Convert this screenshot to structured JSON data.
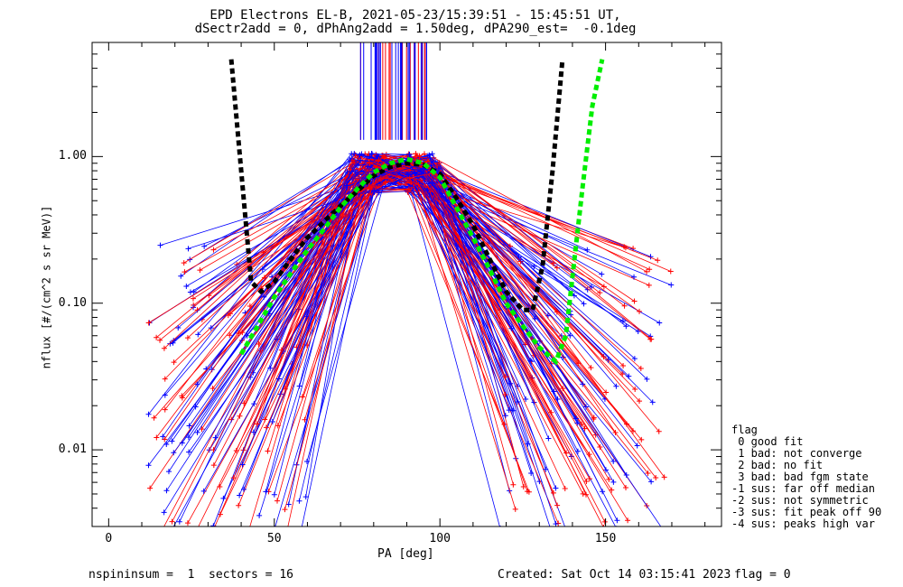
{
  "chart_data": {
    "type": "line",
    "title": "EPD Electrons EL-B, 2021-05-23/15:39:51 - 15:45:51 UT,",
    "subtitle": "dSectr2add = 0, dPhAng2add = 1.50deg, dPA290_est=  -0.1deg",
    "xlabel": "PA [deg]",
    "ylabel": "nflux [#/(cm^2 s sr MeV)]",
    "xlim": [
      -5,
      185
    ],
    "ylim": [
      0.003,
      6
    ],
    "yscale": "log",
    "x_ticks": [
      0,
      50,
      100,
      150
    ],
    "x_tick_labels": [
      "0",
      "50",
      "100",
      "150"
    ],
    "y_ticks": [
      0.01,
      0.1,
      1.0
    ],
    "y_tick_labels": [
      "0.01",
      "0.10",
      "1.00"
    ],
    "grid": false,
    "series": [
      {
        "color": "#000000",
        "style": "dashed-thick",
        "x": [
          37,
          40,
          43,
          46,
          50,
          55,
          60,
          65,
          70,
          75,
          80,
          85,
          90,
          95,
          100,
          105,
          110,
          115,
          120,
          125,
          128,
          131,
          134,
          137
        ],
        "y": [
          4.6,
          0.8,
          0.14,
          0.12,
          0.14,
          0.2,
          0.28,
          0.36,
          0.46,
          0.58,
          0.74,
          0.85,
          0.9,
          0.88,
          0.76,
          0.52,
          0.34,
          0.2,
          0.12,
          0.09,
          0.09,
          0.18,
          0.8,
          4.6
        ]
      },
      {
        "color": "#00ee00",
        "style": "dashed-thick",
        "x": [
          40,
          45,
          50,
          55,
          60,
          65,
          70,
          75,
          80,
          85,
          90,
          95,
          100,
          105,
          110,
          115,
          120,
          125,
          130,
          135,
          138,
          140,
          143,
          146,
          149
        ],
        "y": [
          0.045,
          0.07,
          0.11,
          0.16,
          0.23,
          0.32,
          0.45,
          0.6,
          0.78,
          0.9,
          0.96,
          0.9,
          0.72,
          0.45,
          0.28,
          0.17,
          0.1,
          0.07,
          0.05,
          0.04,
          0.06,
          0.15,
          0.6,
          2.2,
          4.6
        ]
      }
    ],
    "legend": {
      "position": "right",
      "title": "flag",
      "entries": [
        " 0 good fit",
        " 1 bad: not converge",
        " 2 bad: no fit",
        " 3 bad: bad fgm state",
        "-1 sus: far off median",
        "-2 sus: not symmetric",
        "-3 sus: fit peak off 90",
        "-4 sus: peaks high var"
      ]
    }
  },
  "footer": {
    "left": "nspininsum =  1  sectors = 16",
    "created": "Created: Sat Oct 14 03:15:41 2023",
    "flag": "flag = 0"
  }
}
